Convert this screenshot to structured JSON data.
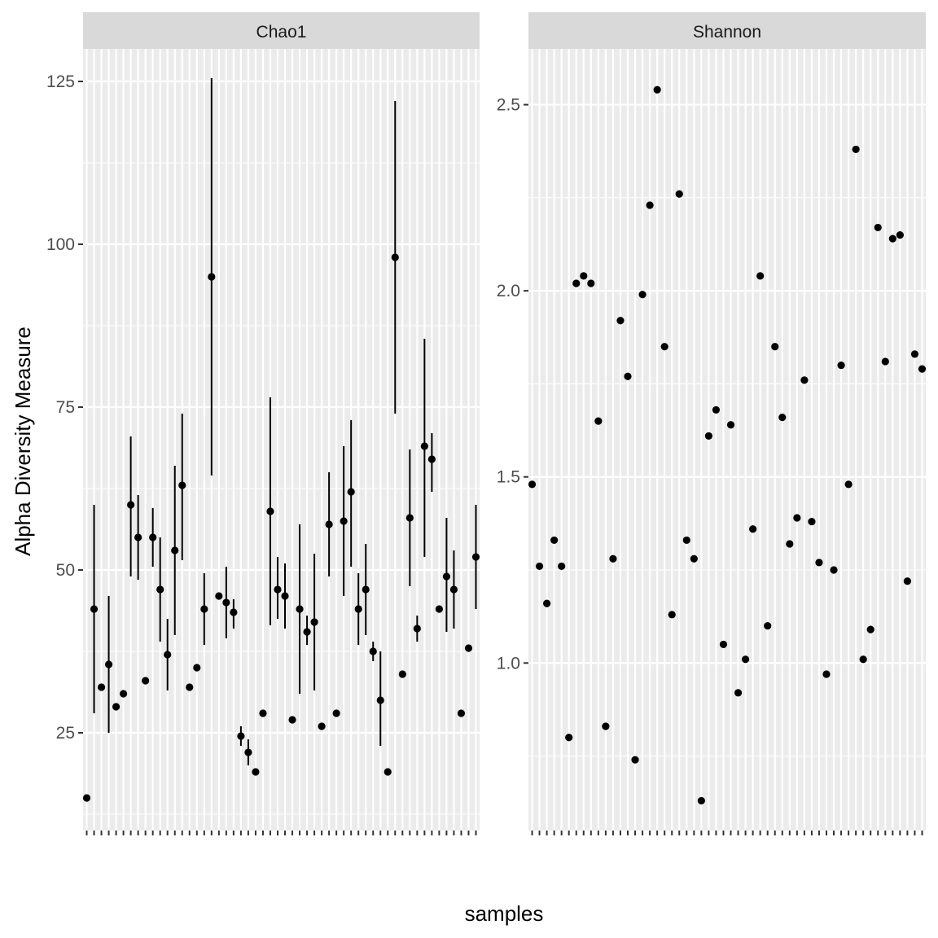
{
  "figure": {
    "xlabel": "samples",
    "ylabel": "Alpha Diversity Measure",
    "panel_bg": "#EBEBEB",
    "strip_bg": "#D9D9D9",
    "grid_color": "#FFFFFF",
    "point_color": "#000000"
  },
  "chart_data": [
    {
      "type": "scatter",
      "facet": "Chao1",
      "title": "Chao1",
      "n_samples": 54,
      "x_tick_labels_legible": false,
      "ylim": [
        10,
        130
      ],
      "yticks": [
        25,
        50,
        75,
        100,
        125
      ],
      "ytick_labels": [
        "25",
        "50",
        "75",
        "100",
        "125"
      ],
      "error_bars": true,
      "x": [
        1,
        2,
        3,
        4,
        5,
        6,
        7,
        8,
        9,
        10,
        11,
        12,
        13,
        14,
        15,
        16,
        17,
        18,
        19,
        20,
        21,
        22,
        23,
        24,
        25,
        26,
        27,
        28,
        29,
        30,
        31,
        32,
        33,
        34,
        35,
        36,
        37,
        38,
        39,
        40,
        41,
        42,
        43,
        44,
        45,
        46,
        47,
        48,
        49,
        50,
        51,
        52,
        53,
        54
      ],
      "y": [
        15,
        44,
        32,
        35.5,
        29,
        31,
        60,
        55,
        33,
        55,
        47,
        37,
        53,
        63,
        32,
        35,
        44,
        95,
        46,
        45,
        43.5,
        24.5,
        22,
        19,
        28,
        59,
        47,
        46,
        27,
        44,
        40.5,
        42,
        26,
        57,
        28,
        57.5,
        62,
        44,
        47,
        37.5,
        30,
        19,
        98,
        34,
        58,
        41,
        69,
        67,
        44,
        49,
        47,
        28,
        38,
        52
      ],
      "y_lower": [
        15,
        28,
        32,
        25,
        29,
        31,
        49,
        48.5,
        33,
        50.5,
        39,
        31.5,
        40,
        51.5,
        32,
        35,
        38.5,
        64.5,
        46,
        39.5,
        41,
        23,
        20,
        19,
        28,
        41.5,
        42.5,
        41,
        27,
        31,
        38.5,
        31.5,
        26,
        49,
        28,
        46,
        50.5,
        38.5,
        40,
        36,
        23,
        19,
        74,
        34,
        47.5,
        39,
        52,
        62,
        44,
        40.5,
        41,
        28,
        38,
        44
      ],
      "y_upper": [
        15,
        60,
        32,
        46,
        29,
        31,
        70.5,
        61.5,
        33,
        59.5,
        55,
        42.5,
        66,
        74,
        32,
        35,
        49.5,
        125.5,
        46,
        50.5,
        45.5,
        26,
        24,
        19,
        28,
        76.5,
        52,
        51,
        27,
        57,
        43,
        52.5,
        26,
        65,
        28,
        69,
        73,
        49.5,
        54,
        39,
        37.5,
        19,
        122,
        34,
        68.5,
        43,
        85.5,
        71,
        44,
        58,
        53,
        28,
        38,
        60
      ]
    },
    {
      "type": "scatter",
      "facet": "Shannon",
      "title": "Shannon",
      "n_samples": 54,
      "x_tick_labels_legible": false,
      "ylim": [
        0.55,
        2.65
      ],
      "yticks": [
        1.0,
        1.5,
        2.0,
        2.5
      ],
      "ytick_labels": [
        "1.0",
        "1.5",
        "2.0",
        "2.5"
      ],
      "error_bars": false,
      "x": [
        1,
        2,
        3,
        4,
        5,
        6,
        7,
        8,
        9,
        10,
        11,
        12,
        13,
        14,
        15,
        16,
        17,
        18,
        19,
        20,
        21,
        22,
        23,
        24,
        25,
        26,
        27,
        28,
        29,
        30,
        31,
        32,
        33,
        34,
        35,
        36,
        37,
        38,
        39,
        40,
        41,
        42,
        43,
        44,
        45,
        46,
        47,
        48,
        49,
        50,
        51,
        52,
        53,
        54
      ],
      "y": [
        1.48,
        1.26,
        1.16,
        1.33,
        1.26,
        0.8,
        2.02,
        2.04,
        2.02,
        1.65,
        0.83,
        1.28,
        1.92,
        1.77,
        0.74,
        1.99,
        2.23,
        2.54,
        1.85,
        1.13,
        2.26,
        1.33,
        1.28,
        0.63,
        1.61,
        1.68,
        1.05,
        1.64,
        0.92,
        1.01,
        1.36,
        2.04,
        1.1,
        1.85,
        1.66,
        1.32,
        1.39,
        1.76,
        1.38,
        1.27,
        0.97,
        1.25,
        1.8,
        1.48,
        2.38,
        1.01,
        1.09,
        2.17,
        1.81,
        2.14,
        2.15,
        1.22,
        1.83,
        1.79
      ]
    }
  ]
}
